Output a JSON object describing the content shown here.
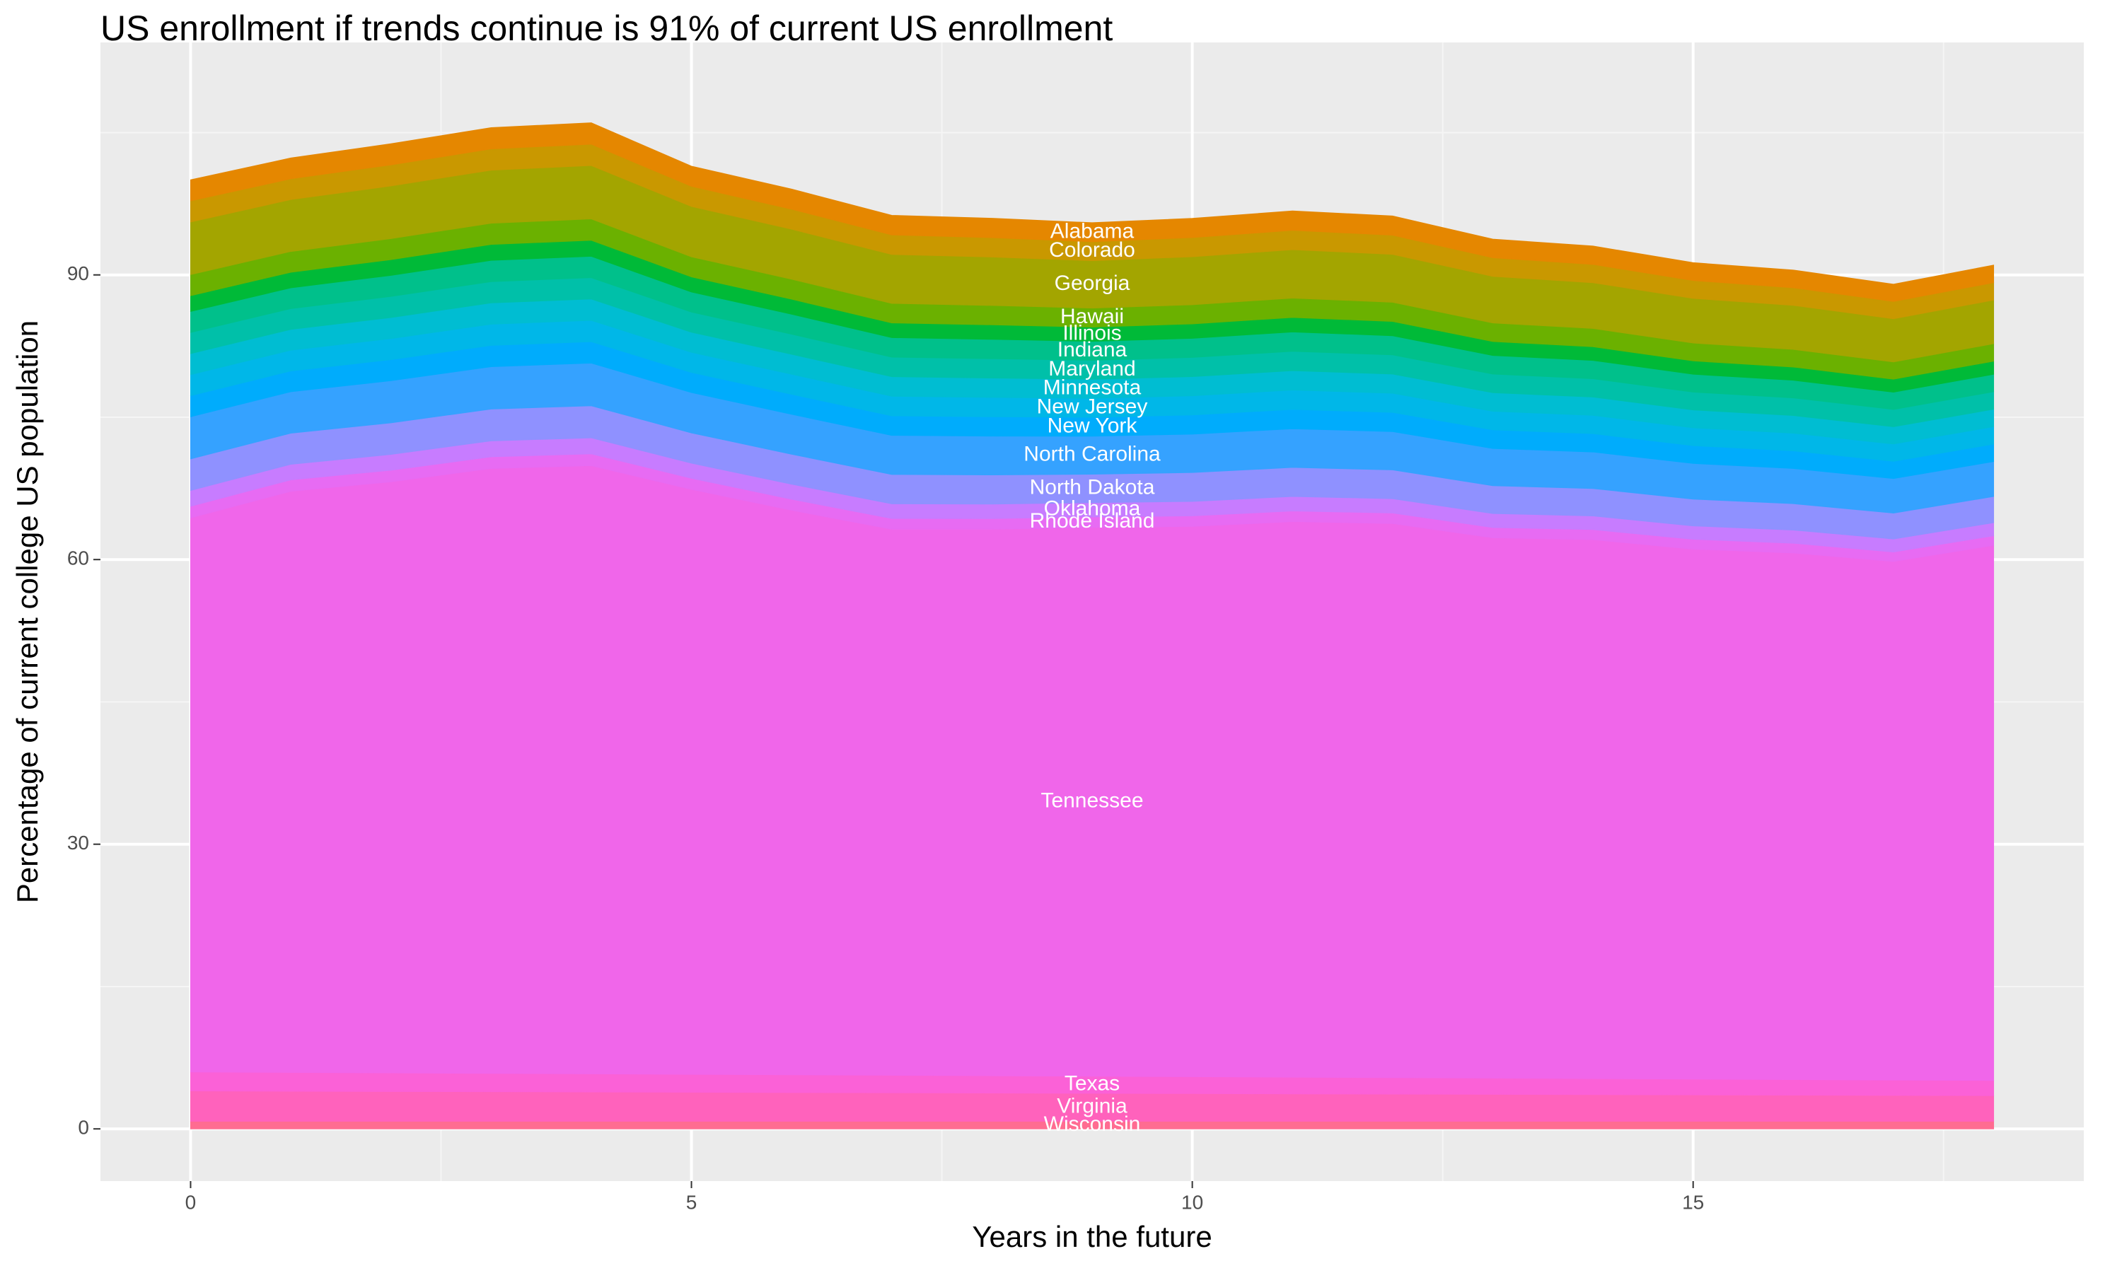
{
  "chart_data": {
    "type": "stacked_area",
    "title": "US enrollment if trends continue is 91% of current US enrollment",
    "xlabel": "Years in the future",
    "ylabel": "Percentage of current college US population",
    "x": [
      0,
      1,
      2,
      3,
      4,
      5,
      6,
      7,
      8,
      9,
      10,
      11,
      12,
      13,
      14,
      15,
      16,
      17,
      18
    ],
    "xlim": [
      -0.9,
      18.9
    ],
    "ylim": [
      -5.5,
      114.5
    ],
    "xticks": [
      0,
      5,
      10,
      15
    ],
    "yticks": [
      0,
      30,
      60,
      90
    ],
    "xminor": [
      2.5,
      7.5,
      12.5,
      17.5
    ],
    "yminor": [
      15,
      45,
      75,
      105
    ],
    "grid": true,
    "label_at": 9,
    "series": [
      {
        "name": "Wisconsin",
        "color": "#ff6c91",
        "values": [
          0.8,
          0.8,
          0.8,
          0.8,
          0.8,
          0.8,
          0.8,
          0.8,
          0.8,
          0.8,
          0.8,
          0.8,
          0.8,
          0.8,
          0.8,
          0.8,
          0.8,
          0.8,
          0.8
        ]
      },
      {
        "name": "Virginia",
        "color": "#ff62bc",
        "values": [
          3.2,
          3.17,
          3.14,
          3.12,
          3.09,
          3.06,
          3.03,
          3.01,
          2.98,
          2.95,
          2.92,
          2.89,
          2.87,
          2.84,
          2.81,
          2.78,
          2.76,
          2.73,
          2.7
        ]
      },
      {
        "name": "Texas",
        "color": "#fb61d7",
        "values": [
          2.0,
          1.98,
          1.96,
          1.93,
          1.91,
          1.89,
          1.87,
          1.84,
          1.82,
          1.8,
          1.78,
          1.76,
          1.73,
          1.71,
          1.69,
          1.67,
          1.64,
          1.62,
          1.6
        ]
      },
      {
        "name": "Tennessee",
        "color": "#f066ea",
        "values": [
          58.4,
          61.25,
          62.3,
          63.75,
          64.1,
          61.65,
          59.5,
          57.55,
          57.6,
          57.85,
          58,
          58.55,
          58.4,
          56.95,
          56.8,
          55.85,
          55.5,
          54.65,
          56.4
        ]
      },
      {
        "name": "Rhode Island",
        "color": "#e76bf3",
        "values": [
          1.22,
          1.2,
          1.22,
          1.23,
          1.24,
          1.17,
          1.16,
          1.13,
          1.12,
          1.1,
          1.11,
          1.12,
          1.11,
          1.08,
          1.06,
          1.04,
          1.02,
          1.0,
          1.01
        ]
      },
      {
        "name": "Oklahoma",
        "color": "#c77cff",
        "values": [
          1.66,
          1.64,
          1.66,
          1.68,
          1.69,
          1.59,
          1.58,
          1.55,
          1.53,
          1.5,
          1.52,
          1.53,
          1.51,
          1.47,
          1.44,
          1.41,
          1.39,
          1.37,
          1.38
        ]
      },
      {
        "name": "North Dakota",
        "color": "#8f91ff",
        "values": [
          3.33,
          3.28,
          3.33,
          3.35,
          3.38,
          3.19,
          3.16,
          3.09,
          3.07,
          3,
          3.04,
          3.06,
          3.03,
          2.94,
          2.89,
          2.82,
          2.78,
          2.73,
          2.76
        ]
      },
      {
        "name": "North Carolina",
        "color": "#35a2ff",
        "values": [
          4.44,
          4.37,
          4.44,
          4.47,
          4.5,
          4.25,
          4.21,
          4.12,
          4.09,
          4,
          4.05,
          4.08,
          4.04,
          3.92,
          3.85,
          3.76,
          3.71,
          3.64,
          3.68
        ]
      },
      {
        "name": "New York",
        "color": "#00acfc",
        "values": [
          2.22,
          2.19,
          2.22,
          2.24,
          2.25,
          2.12,
          2.11,
          2.06,
          2.04,
          2,
          2.02,
          2.04,
          2.02,
          1.96,
          1.93,
          1.88,
          1.86,
          1.82,
          1.84
        ]
      },
      {
        "name": "New Jersey",
        "color": "#00b7e8",
        "values": [
          2.22,
          2.19,
          2.22,
          2.24,
          2.25,
          2.12,
          2.11,
          2.06,
          2.04,
          2,
          2.02,
          2.04,
          2.02,
          1.96,
          1.93,
          1.88,
          1.86,
          1.82,
          1.84
        ]
      },
      {
        "name": "Minnesota",
        "color": "#00bdd2",
        "values": [
          2.22,
          2.19,
          2.22,
          2.24,
          2.25,
          2.12,
          2.11,
          2.06,
          2.04,
          2,
          2.02,
          2.04,
          2.02,
          1.96,
          1.93,
          1.88,
          1.86,
          1.82,
          1.84
        ]
      },
      {
        "name": "Maryland",
        "color": "#00c0a9",
        "values": [
          2.22,
          2.19,
          2.22,
          2.24,
          2.25,
          2.12,
          2.11,
          2.06,
          2.04,
          2,
          2.02,
          2.04,
          2.02,
          1.96,
          1.93,
          1.88,
          1.86,
          1.82,
          1.84
        ]
      },
      {
        "name": "Indiana",
        "color": "#00c08b",
        "values": [
          2.22,
          2.19,
          2.22,
          2.24,
          2.25,
          2.12,
          2.11,
          2.06,
          2.04,
          2,
          2.02,
          2.04,
          2.02,
          1.96,
          1.93,
          1.88,
          1.86,
          1.82,
          1.84
        ]
      },
      {
        "name": "Illinois",
        "color": "#00ba38",
        "values": [
          1.66,
          1.64,
          1.66,
          1.68,
          1.69,
          1.59,
          1.58,
          1.55,
          1.53,
          1.5,
          1.52,
          1.53,
          1.51,
          1.47,
          1.44,
          1.41,
          1.39,
          1.37,
          1.38
        ]
      },
      {
        "name": "Hawaii",
        "color": "#6bb100",
        "values": [
          2.22,
          2.19,
          2.22,
          2.24,
          2.25,
          2.12,
          2.11,
          2.06,
          2.04,
          2,
          2.02,
          2.04,
          2.02,
          1.96,
          1.93,
          1.88,
          1.86,
          1.82,
          1.84
        ]
      },
      {
        "name": "Georgia",
        "color": "#a3a500",
        "values": [
          5.55,
          5.47,
          5.55,
          5.59,
          5.63,
          5.31,
          5.27,
          5.16,
          5.11,
          5,
          5.06,
          5.1,
          5.05,
          4.91,
          4.82,
          4.71,
          4.64,
          4.55,
          4.6
        ]
      },
      {
        "name": "Colorado",
        "color": "#c99800",
        "values": [
          2.22,
          2.19,
          2.22,
          2.24,
          2.25,
          2.12,
          2.11,
          2.06,
          2.04,
          2,
          2.02,
          2.04,
          2.02,
          1.96,
          1.93,
          1.88,
          1.86,
          1.82,
          1.84
        ]
      },
      {
        "name": "Alabama",
        "color": "#e58700",
        "values": [
          2.22,
          2.19,
          2.22,
          2.24,
          2.25,
          2.12,
          2.11,
          2.06,
          2.04,
          2,
          2.02,
          2.04,
          2.02,
          1.96,
          1.93,
          1.88,
          1.86,
          1.82,
          1.84
        ]
      }
    ]
  }
}
